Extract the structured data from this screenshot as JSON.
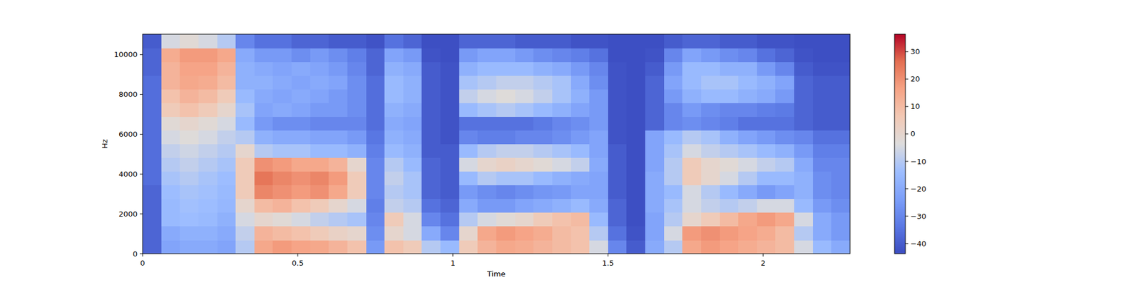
{
  "chart_data": {
    "type": "heatmap",
    "x_label": "Time",
    "y_label": "Hz",
    "xlim": [
      0,
      2.28
    ],
    "ylim": [
      0,
      11025
    ],
    "xticks": [
      0,
      0.5,
      1,
      1.5,
      2
    ],
    "yticks": [
      0,
      2000,
      4000,
      6000,
      8000,
      10000
    ],
    "colorbar": {
      "range": [
        -43.7,
        36.4
      ],
      "ticks": [
        {
          "value": -40,
          "label": "−40"
        },
        {
          "value": -30,
          "label": "−30"
        },
        {
          "value": -20,
          "label": "−20"
        },
        {
          "value": -10,
          "label": "−10"
        },
        0,
        10,
        20,
        30
      ]
    },
    "cells": [
      [
        -38,
        -22,
        -20,
        -20,
        -22,
        -10,
        15,
        18,
        16,
        15,
        12,
        8,
        -25,
        8,
        5,
        -10,
        -15,
        5,
        12,
        15,
        14,
        12,
        10,
        8,
        -5,
        -30,
        -40,
        -20,
        -10,
        15,
        18,
        16,
        14,
        12,
        10,
        -5,
        -15,
        -20
      ],
      [
        -38,
        -20,
        -18,
        -18,
        -20,
        -8,
        12,
        10,
        8,
        5,
        2,
        0,
        -28,
        0,
        -5,
        -20,
        -30,
        0,
        15,
        18,
        16,
        14,
        10,
        8,
        -10,
        -35,
        -42,
        -22,
        -5,
        18,
        20,
        18,
        16,
        14,
        10,
        -10,
        -20,
        -25
      ],
      [
        -38,
        -15,
        -14,
        -15,
        -18,
        -5,
        0,
        -2,
        -5,
        -8,
        -10,
        -12,
        -30,
        5,
        -5,
        -30,
        -35,
        -10,
        -5,
        -2,
        0,
        5,
        8,
        10,
        -15,
        -38,
        -43,
        -22,
        -10,
        0,
        5,
        10,
        15,
        18,
        15,
        -5,
        -20,
        -25
      ],
      [
        -38,
        -15,
        -13,
        -14,
        -16,
        0,
        10,
        12,
        8,
        5,
        0,
        -5,
        -32,
        -8,
        -10,
        -35,
        -38,
        -20,
        -25,
        -25,
        -22,
        -20,
        -18,
        -15,
        -20,
        -38,
        -43,
        -20,
        -12,
        -5,
        -8,
        -10,
        -8,
        -5,
        -5,
        -15,
        -25,
        -28
      ],
      [
        -38,
        -14,
        -12,
        -13,
        -15,
        5,
        22,
        20,
        18,
        20,
        15,
        5,
        -30,
        -10,
        -12,
        -38,
        -40,
        -25,
        -28,
        -30,
        -28,
        -26,
        -25,
        -22,
        -22,
        -40,
        -43,
        -20,
        -15,
        -5,
        -10,
        -15,
        -20,
        -25,
        -22,
        -18,
        -28,
        -30
      ],
      [
        -36,
        -12,
        -10,
        -12,
        -14,
        5,
        25,
        22,
        20,
        22,
        18,
        5,
        -30,
        -8,
        -12,
        -38,
        -40,
        -15,
        -10,
        -12,
        -12,
        -15,
        -18,
        -20,
        -22,
        -40,
        -43,
        -20,
        -10,
        5,
        0,
        -5,
        -10,
        -15,
        -15,
        -18,
        -28,
        -30
      ],
      [
        -36,
        -10,
        -8,
        -10,
        -12,
        5,
        20,
        18,
        15,
        15,
        12,
        0,
        -30,
        -10,
        -15,
        -38,
        -40,
        -5,
        0,
        2,
        0,
        -2,
        -5,
        -8,
        -20,
        -40,
        -43,
        -22,
        -10,
        5,
        0,
        -2,
        -5,
        -8,
        -10,
        -20,
        -30,
        -30
      ],
      [
        -36,
        -8,
        -6,
        -8,
        -10,
        0,
        -10,
        -12,
        -12,
        -15,
        -15,
        -18,
        -32,
        -15,
        -18,
        -40,
        -40,
        -15,
        -10,
        -8,
        -8,
        -10,
        -12,
        -15,
        -22,
        -40,
        -43,
        -22,
        -12,
        -5,
        -8,
        -10,
        -12,
        -15,
        -18,
        -25,
        -32,
        -32
      ],
      [
        -36,
        -5,
        -3,
        -5,
        -8,
        -10,
        -18,
        -20,
        -20,
        -22,
        -22,
        -25,
        -34,
        -18,
        -20,
        -40,
        -42,
        -30,
        -32,
        -32,
        -30,
        -30,
        -28,
        -25,
        -22,
        -42,
        -43,
        -22,
        -15,
        -10,
        -12,
        -18,
        -22,
        -25,
        -28,
        -30,
        -35,
        -35
      ],
      [
        -36,
        -2,
        0,
        -2,
        -5,
        -15,
        -25,
        -28,
        -28,
        -30,
        -30,
        -30,
        -36,
        -20,
        -22,
        -40,
        -42,
        -35,
        -35,
        -35,
        -35,
        -33,
        -30,
        -28,
        -25,
        -42,
        -43,
        -38,
        -30,
        -28,
        -30,
        -32,
        -35,
        -35,
        -35,
        -38,
        -40,
        -40
      ],
      [
        -36,
        5,
        8,
        5,
        0,
        -12,
        -22,
        -20,
        -22,
        -25,
        -25,
        -28,
        -36,
        -18,
        -20,
        -40,
        -42,
        -15,
        -12,
        -10,
        -12,
        -15,
        -18,
        -22,
        -25,
        -42,
        -43,
        -38,
        -30,
        -25,
        -28,
        -30,
        -30,
        -32,
        -33,
        -38,
        -40,
        -40
      ],
      [
        -36,
        8,
        12,
        10,
        5,
        -15,
        -20,
        -22,
        -20,
        -22,
        -25,
        -28,
        -36,
        -15,
        -18,
        -40,
        -42,
        -8,
        -5,
        -3,
        -5,
        -8,
        -12,
        -18,
        -25,
        -42,
        -43,
        -38,
        -25,
        -18,
        -15,
        -15,
        -18,
        -20,
        -25,
        -38,
        -40,
        -40
      ],
      [
        -36,
        12,
        15,
        14,
        10,
        -18,
        -18,
        -20,
        -22,
        -20,
        -22,
        -28,
        -36,
        -15,
        -18,
        -40,
        -42,
        -12,
        -10,
        -8,
        -8,
        -10,
        -12,
        -20,
        -28,
        -42,
        -43,
        -38,
        -22,
        -15,
        -12,
        -12,
        -15,
        -18,
        -22,
        -38,
        -40,
        -40
      ],
      [
        -38,
        12,
        16,
        16,
        12,
        -18,
        -20,
        -22,
        -20,
        -22,
        -25,
        -30,
        -38,
        -18,
        -20,
        -40,
        -42,
        -18,
        -15,
        -15,
        -15,
        -18,
        -20,
        -25,
        -30,
        -42,
        -43,
        -40,
        -25,
        -15,
        -15,
        -18,
        -18,
        -25,
        -30,
        -40,
        -42,
        -42
      ],
      [
        -38,
        14,
        18,
        18,
        15,
        -20,
        -25,
        -25,
        -28,
        -25,
        -28,
        -32,
        -38,
        -22,
        -25,
        -42,
        -43,
        -25,
        -22,
        -22,
        -25,
        -28,
        -30,
        -32,
        -35,
        -43,
        -43,
        -42,
        -30,
        -22,
        -25,
        -28,
        -30,
        -35,
        -38,
        -42,
        -43,
        -43
      ],
      [
        -40,
        -5,
        -2,
        -5,
        -10,
        -30,
        -35,
        -35,
        -38,
        -38,
        -40,
        -40,
        -42,
        -35,
        -38,
        -43,
        -43,
        -38,
        -38,
        -38,
        -40,
        -40,
        -40,
        -42,
        -42,
        -43,
        -43,
        -43,
        -40,
        -38,
        -38,
        -40,
        -40,
        -42,
        -42,
        -43,
        -43,
        -43
      ]
    ]
  }
}
